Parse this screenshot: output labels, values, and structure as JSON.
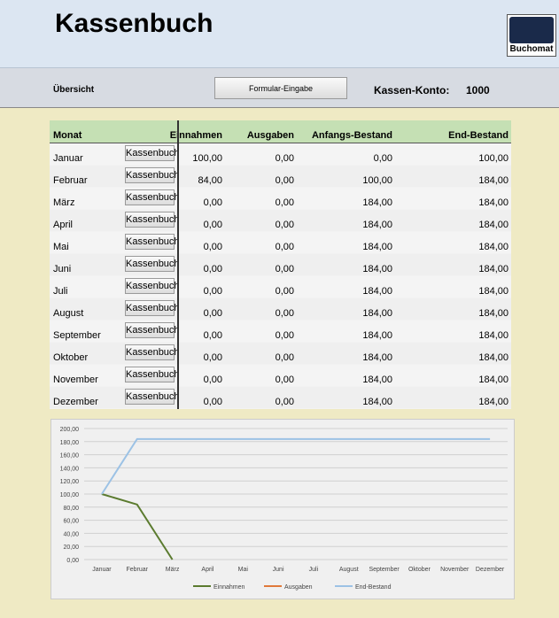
{
  "header": {
    "title": "Kassenbuch",
    "logo": "Buchomat"
  },
  "toolbar": {
    "overview": "Übersicht",
    "button": "Formular-Eingabe",
    "account_label": "Kassen-Konto:",
    "account_value": "1000"
  },
  "table": {
    "columns": [
      "Monat",
      "Einnahmen",
      "Ausgaben",
      "Anfangs-Bestand",
      "End-Bestand"
    ],
    "row_button": "Kassenbuch",
    "rows": [
      [
        "Januar",
        "100,00",
        "0,00",
        "0,00",
        "100,00"
      ],
      [
        "Februar",
        "84,00",
        "0,00",
        "100,00",
        "184,00"
      ],
      [
        "März",
        "0,00",
        "0,00",
        "184,00",
        "184,00"
      ],
      [
        "April",
        "0,00",
        "0,00",
        "184,00",
        "184,00"
      ],
      [
        "Mai",
        "0,00",
        "0,00",
        "184,00",
        "184,00"
      ],
      [
        "Juni",
        "0,00",
        "0,00",
        "184,00",
        "184,00"
      ],
      [
        "Juli",
        "0,00",
        "0,00",
        "184,00",
        "184,00"
      ],
      [
        "August",
        "0,00",
        "0,00",
        "184,00",
        "184,00"
      ],
      [
        "September",
        "0,00",
        "0,00",
        "184,00",
        "184,00"
      ],
      [
        "Oktober",
        "0,00",
        "0,00",
        "184,00",
        "184,00"
      ],
      [
        "November",
        "0,00",
        "0,00",
        "184,00",
        "184,00"
      ],
      [
        "Dezember",
        "0,00",
        "0,00",
        "184,00",
        "184,00"
      ]
    ]
  },
  "chart_data": {
    "type": "line",
    "categories": [
      "Januar",
      "Februar",
      "März",
      "April",
      "Mai",
      "Juni",
      "Juli",
      "August",
      "September",
      "Oktober",
      "November",
      "Dezember"
    ],
    "series": [
      {
        "name": "Einnahmen",
        "color": "#5b7b2f",
        "values": [
          100,
          84,
          0,
          null,
          null,
          null,
          null,
          null,
          null,
          null,
          null,
          null
        ]
      },
      {
        "name": "Ausgaben",
        "color": "#e0793a",
        "values": [
          null,
          null,
          null,
          null,
          null,
          null,
          null,
          null,
          null,
          null,
          null,
          null
        ]
      },
      {
        "name": "End-Bestand",
        "color": "#9cc2e5",
        "values": [
          100,
          184,
          184,
          184,
          184,
          184,
          184,
          184,
          184,
          184,
          184,
          184
        ]
      }
    ],
    "ylim": [
      0,
      200
    ],
    "yticks": [
      {
        "value": 0,
        "label": "0,00"
      },
      {
        "value": 20,
        "label": "20,00"
      },
      {
        "value": 40,
        "label": "40,00"
      },
      {
        "value": 60,
        "label": "60,00"
      },
      {
        "value": 80,
        "label": "80,00"
      },
      {
        "value": 100,
        "label": "100,00"
      },
      {
        "value": 120,
        "label": "120,00"
      },
      {
        "value": 140,
        "label": "140,00"
      },
      {
        "value": 160,
        "label": "160,00"
      },
      {
        "value": 180,
        "label": "180,00"
      },
      {
        "value": 200,
        "label": "200,00"
      }
    ],
    "grid": true,
    "legend": "bottom"
  }
}
